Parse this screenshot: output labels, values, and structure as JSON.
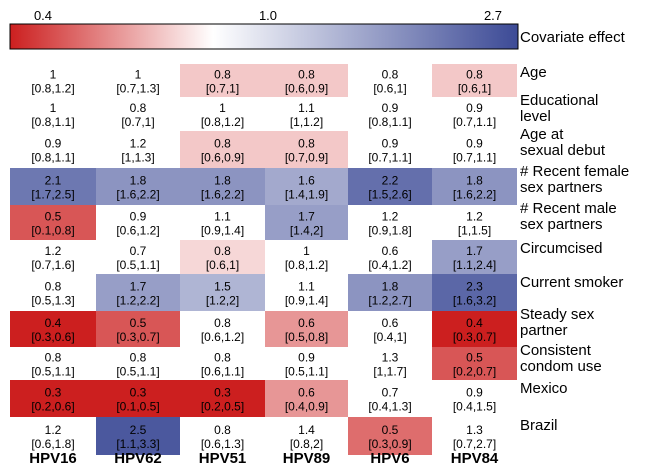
{
  "chart_data": {
    "type": "heatmap",
    "colorbar": {
      "title": "Covariate effect",
      "ticks": [
        "0.4",
        "1.0",
        "2.7"
      ],
      "tick_values": [
        0.4,
        1.0,
        2.7
      ],
      "colors": {
        "low": "#cc1f1f",
        "mid": "#ffffff",
        "high": "#3c4a96"
      },
      "scale": "log"
    },
    "columns": [
      "HPV16",
      "HPV62",
      "HPV51",
      "HPV89",
      "HPV6",
      "HPV84"
    ],
    "rows": [
      {
        "label": [
          "Age"
        ],
        "cells": [
          {
            "v": "1",
            "ci": "[0.8,1.2]",
            "e": 1.0
          },
          {
            "v": "1",
            "ci": "[0.7,1.3]",
            "e": 1.0
          },
          {
            "v": "0.8",
            "ci": "[0.7,1]",
            "e": 0.8
          },
          {
            "v": "0.8",
            "ci": "[0.6,0.9]",
            "e": 0.8
          },
          {
            "v": "0.8",
            "ci": "[0.6,1]",
            "e": 1.0
          },
          {
            "v": "0.8",
            "ci": "[0.6,1]",
            "e": 0.8
          }
        ]
      },
      {
        "label": [
          "Educational",
          "level"
        ],
        "cells": [
          {
            "v": "1",
            "ci": "[0.8,1.1]",
            "e": 1.0
          },
          {
            "v": "0.8",
            "ci": "[0.7,1]",
            "e": 1.0
          },
          {
            "v": "1",
            "ci": "[0.8,1.2]",
            "e": 1.0
          },
          {
            "v": "1.1",
            "ci": "[1,1.2]",
            "e": 1.0
          },
          {
            "v": "0.9",
            "ci": "[0.8,1.1]",
            "e": 1.0
          },
          {
            "v": "0.9",
            "ci": "[0.7,1.1]",
            "e": 1.0
          }
        ]
      },
      {
        "label": [
          "Age at",
          "sexual debut"
        ],
        "cells": [
          {
            "v": "0.9",
            "ci": "[0.8,1.1]",
            "e": 1.0
          },
          {
            "v": "1.2",
            "ci": "[1,1.3]",
            "e": 1.0
          },
          {
            "v": "0.8",
            "ci": "[0.6,0.9]",
            "e": 0.8
          },
          {
            "v": "0.8",
            "ci": "[0.7,0.9]",
            "e": 0.8
          },
          {
            "v": "0.9",
            "ci": "[0.7,1.1]",
            "e": 1.0
          },
          {
            "v": "0.9",
            "ci": "[0.7,1.1]",
            "e": 1.0
          }
        ]
      },
      {
        "label": [
          "# Recent female",
          "sex partners"
        ],
        "cells": [
          {
            "v": "2.1",
            "ci": "[1.7,2.5]",
            "e": 2.1
          },
          {
            "v": "1.8",
            "ci": "[1.6,2.2]",
            "e": 1.8
          },
          {
            "v": "1.8",
            "ci": "[1.6,2.2]",
            "e": 1.8
          },
          {
            "v": "1.6",
            "ci": "[1.4,1.9]",
            "e": 1.6
          },
          {
            "v": "2.2",
            "ci": "[1.5,2.6]",
            "e": 2.2
          },
          {
            "v": "1.8",
            "ci": "[1.6,2.2]",
            "e": 1.8
          }
        ]
      },
      {
        "label": [
          "# Recent male",
          "sex partners"
        ],
        "cells": [
          {
            "v": "0.5",
            "ci": "[0.1,0.8]",
            "e": 0.5
          },
          {
            "v": "0.9",
            "ci": "[0.6,1.2]",
            "e": 1.0
          },
          {
            "v": "1.1",
            "ci": "[0.9,1.4]",
            "e": 1.0
          },
          {
            "v": "1.7",
            "ci": "[1.4,2]",
            "e": 1.7
          },
          {
            "v": "1.2",
            "ci": "[0.9,1.8]",
            "e": 1.0
          },
          {
            "v": "1.2",
            "ci": "[1,1.5]",
            "e": 1.0
          }
        ]
      },
      {
        "label": [
          "Circumcised"
        ],
        "cells": [
          {
            "v": "1.2",
            "ci": "[0.7,1.6]",
            "e": 1.0
          },
          {
            "v": "0.7",
            "ci": "[0.5,1.1]",
            "e": 1.0
          },
          {
            "v": "0.8",
            "ci": "[0.6,1]",
            "e": 0.85
          },
          {
            "v": "1",
            "ci": "[0.8,1.2]",
            "e": 1.0
          },
          {
            "v": "0.6",
            "ci": "[0.4,1.2]",
            "e": 1.0
          },
          {
            "v": "1.7",
            "ci": "[1.1,2.4]",
            "e": 1.7
          }
        ]
      },
      {
        "label": [
          "Current smoker"
        ],
        "cells": [
          {
            "v": "0.8",
            "ci": "[0.5,1.3]",
            "e": 1.0
          },
          {
            "v": "1.7",
            "ci": "[1.2,2.2]",
            "e": 1.7
          },
          {
            "v": "1.5",
            "ci": "[1.2,2]",
            "e": 1.5
          },
          {
            "v": "1.1",
            "ci": "[0.9,1.4]",
            "e": 1.0
          },
          {
            "v": "1.8",
            "ci": "[1.2,2.7]",
            "e": 1.8
          },
          {
            "v": "2.3",
            "ci": "[1.6,3.2]",
            "e": 2.3
          }
        ]
      },
      {
        "label": [
          "Steady sex",
          "partner"
        ],
        "cells": [
          {
            "v": "0.4",
            "ci": "[0.3,0.6]",
            "e": 0.4
          },
          {
            "v": "0.5",
            "ci": "[0.3,0.7]",
            "e": 0.5
          },
          {
            "v": "0.8",
            "ci": "[0.6,1.2]",
            "e": 1.0
          },
          {
            "v": "0.6",
            "ci": "[0.5,0.8]",
            "e": 0.65
          },
          {
            "v": "0.6",
            "ci": "[0.4,1]",
            "e": 1.0
          },
          {
            "v": "0.4",
            "ci": "[0.3,0.7]",
            "e": 0.4
          }
        ]
      },
      {
        "label": [
          "Consistent",
          "condom use"
        ],
        "cells": [
          {
            "v": "0.8",
            "ci": "[0.5,1.1]",
            "e": 1.0
          },
          {
            "v": "0.8",
            "ci": "[0.5,1.1]",
            "e": 1.0
          },
          {
            "v": "0.8",
            "ci": "[0.6,1.1]",
            "e": 1.0
          },
          {
            "v": "0.9",
            "ci": "[0.5,1.1]",
            "e": 1.0
          },
          {
            "v": "1.3",
            "ci": "[1,1.7]",
            "e": 1.0
          },
          {
            "v": "0.5",
            "ci": "[0.2,0.7]",
            "e": 0.5
          }
        ]
      },
      {
        "label": [
          "Mexico"
        ],
        "cells": [
          {
            "v": "0.3",
            "ci": "[0.2,0.6]",
            "e": 0.35
          },
          {
            "v": "0.3",
            "ci": "[0.1,0.5]",
            "e": 0.33
          },
          {
            "v": "0.3",
            "ci": "[0.2,0.5]",
            "e": 0.35
          },
          {
            "v": "0.6",
            "ci": "[0.4,0.9]",
            "e": 0.65
          },
          {
            "v": "0.7",
            "ci": "[0.4,1.3]",
            "e": 1.0
          },
          {
            "v": "0.9",
            "ci": "[0.4,1.5]",
            "e": 1.0
          }
        ]
      },
      {
        "label": [
          "Brazil"
        ],
        "cells": [
          {
            "v": "1.2",
            "ci": "[0.6,1.8]",
            "e": 1.0
          },
          {
            "v": "2.5",
            "ci": "[1.1,3.3]",
            "e": 2.5
          },
          {
            "v": "0.8",
            "ci": "[0.6,1.3]",
            "e": 1.0
          },
          {
            "v": "1.4",
            "ci": "[0.8,2]",
            "e": 1.0
          },
          {
            "v": "0.5",
            "ci": "[0.3,0.9]",
            "e": 0.55
          },
          {
            "v": "1.3",
            "ci": "[0.7,2.7]",
            "e": 1.0
          }
        ]
      }
    ]
  }
}
